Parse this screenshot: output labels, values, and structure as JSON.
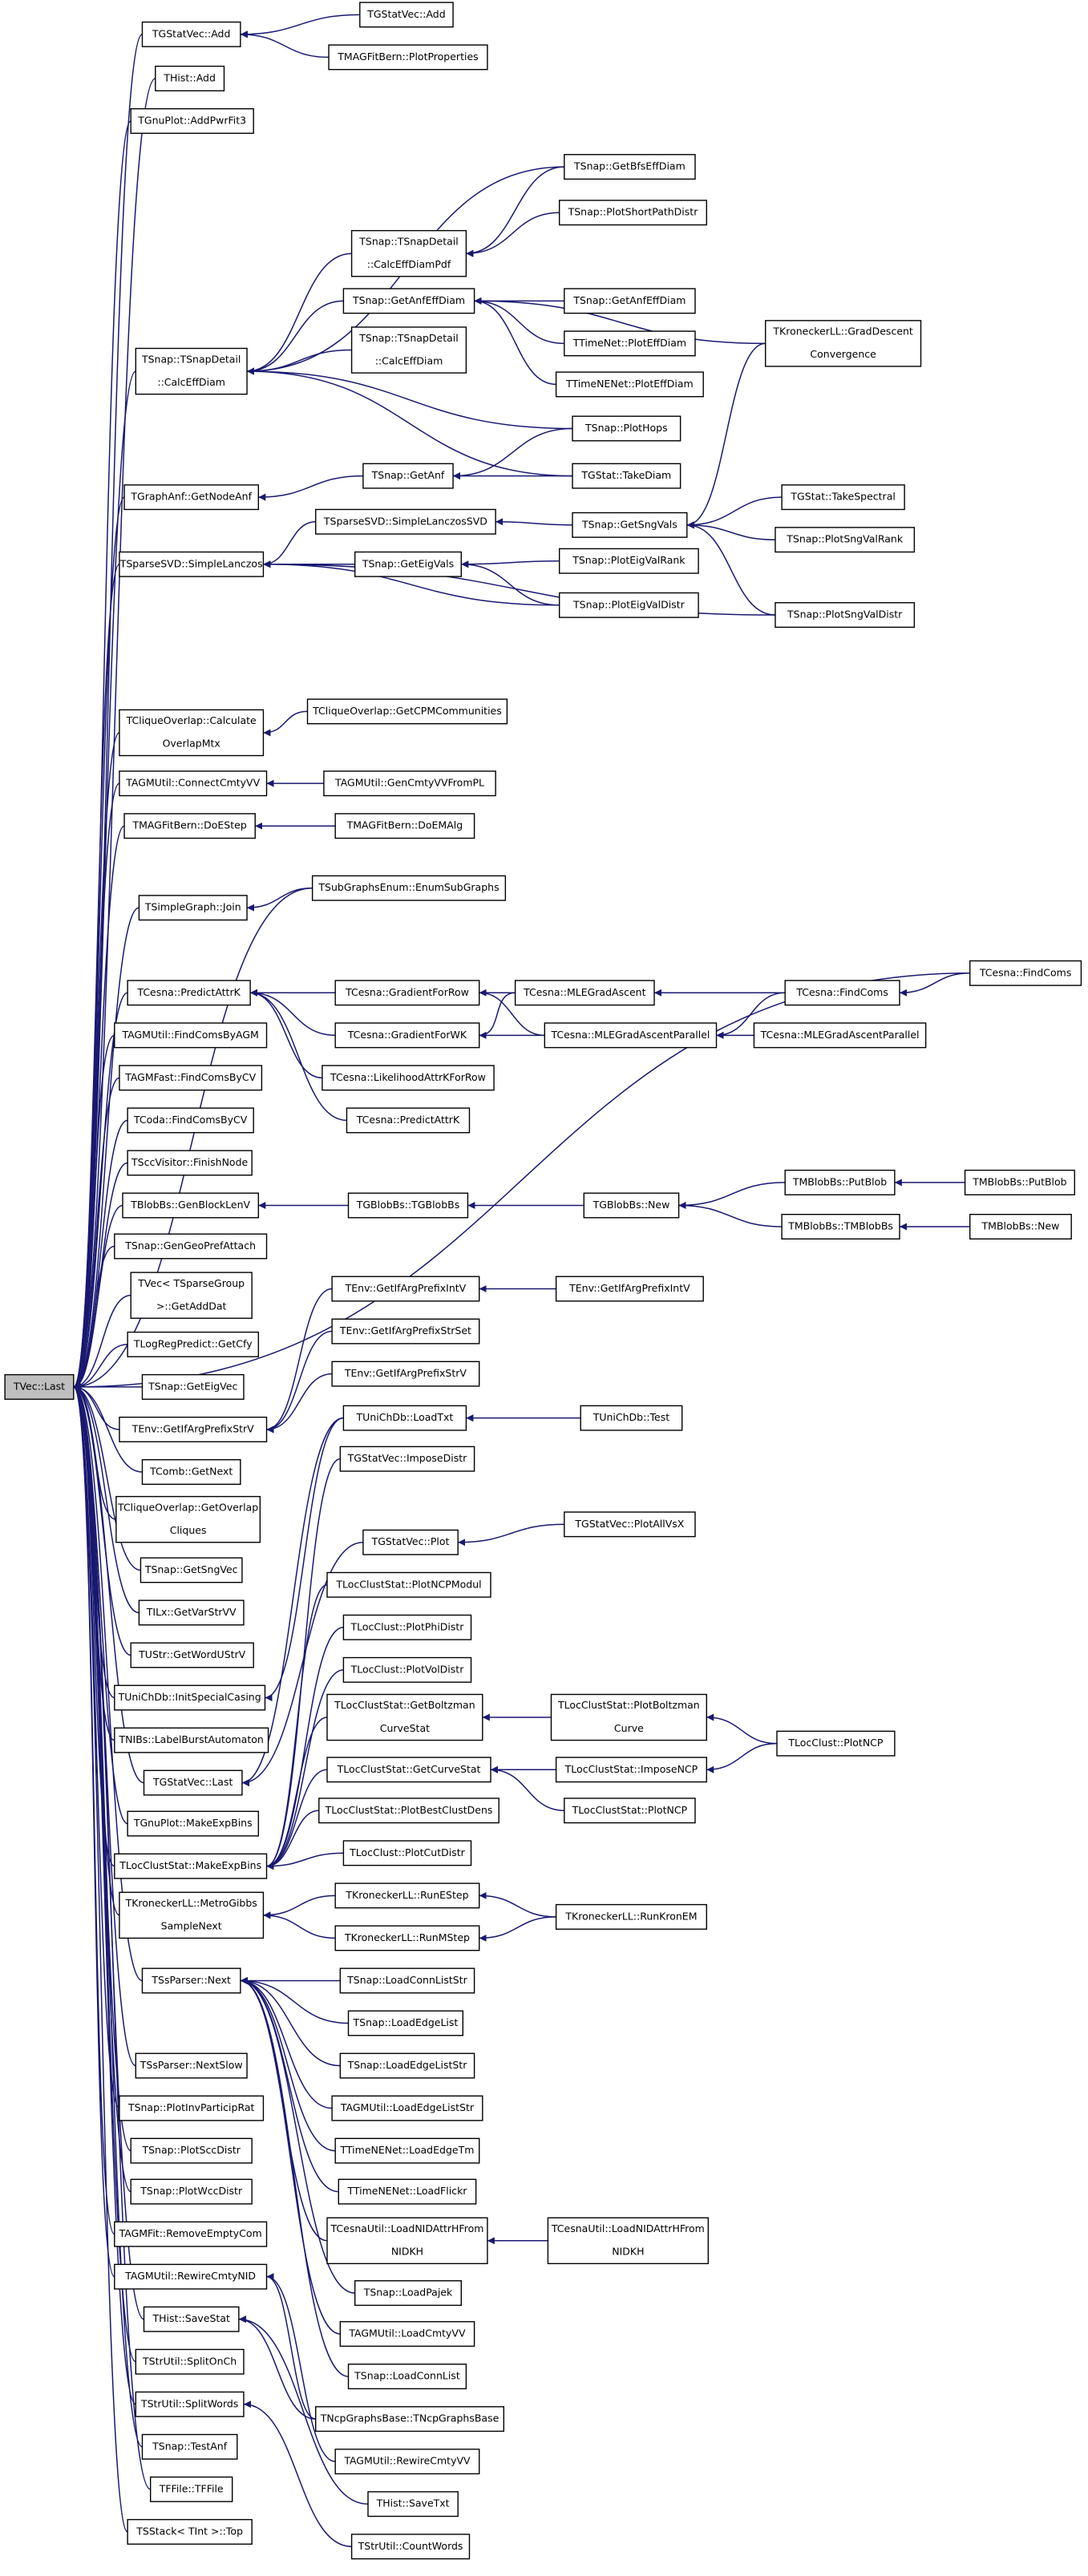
{
  "nodes": [
    {
      "label": [
        "TVec::Last"
      ]
    },
    {
      "label": [
        "TGStatVec::Add"
      ]
    },
    {
      "label": [
        "THist::Add"
      ]
    },
    {
      "label": [
        "TGnuPlot::AddPwrFit3"
      ]
    },
    {
      "label": [
        "TSnap::TSnapDetail",
        "::CalcEffDiam"
      ]
    },
    {
      "label": [
        "TGraphAnf::GetNodeAnf"
      ]
    },
    {
      "label": [
        "TSparseSVD::SimpleLanczos"
      ]
    },
    {
      "label": [
        "TCliqueOverlap::Calculate",
        "OverlapMtx"
      ]
    },
    {
      "label": [
        "TAGMUtil::ConnectCmtyVV"
      ]
    },
    {
      "label": [
        "TMAGFitBern::DoEStep"
      ]
    },
    {
      "label": [
        "TSimpleGraph::Join"
      ]
    },
    {
      "label": [
        "TCesna::PredictAttrK"
      ]
    },
    {
      "label": [
        "TAGMUtil::FindComsByAGM"
      ]
    },
    {
      "label": [
        "TAGMFast::FindComsByCV"
      ]
    },
    {
      "label": [
        "TCoda::FindComsByCV"
      ]
    },
    {
      "label": [
        "TSccVisitor::FinishNode"
      ]
    },
    {
      "label": [
        "TBlobBs::GenBlockLenV"
      ]
    },
    {
      "label": [
        "TSnap::GenGeoPrefAttach"
      ]
    },
    {
      "label": [
        "TVec< TSparseGroup",
        ">::GetAddDat"
      ]
    },
    {
      "label": [
        "TLogRegPredict::GetCfy"
      ]
    },
    {
      "label": [
        "TSnap::GetEigVec"
      ]
    },
    {
      "label": [
        "TEnv::GetIfArgPrefixStrV"
      ]
    },
    {
      "label": [
        "TComb::GetNext"
      ]
    },
    {
      "label": [
        "TCliqueOverlap::GetOverlap",
        "Cliques"
      ]
    },
    {
      "label": [
        "TSnap::GetSngVec"
      ]
    },
    {
      "label": [
        "TILx::GetVarStrVV"
      ]
    },
    {
      "label": [
        "TUStr::GetWordUStrV"
      ]
    },
    {
      "label": [
        "TUniChDb::InitSpecialCasing"
      ]
    },
    {
      "label": [
        "TNIBs::LabelBurstAutomaton"
      ]
    },
    {
      "label": [
        "TGStatVec::Last"
      ]
    },
    {
      "label": [
        "TGnuPlot::MakeExpBins"
      ]
    },
    {
      "label": [
        "TLocClustStat::MakeExpBins"
      ]
    },
    {
      "label": [
        "TKroneckerLL::MetroGibbs",
        "SampleNext"
      ]
    },
    {
      "label": [
        "TSsParser::Next"
      ]
    },
    {
      "label": [
        "TSsParser::NextSlow"
      ]
    },
    {
      "label": [
        "TSnap::PlotInvParticipRat"
      ]
    },
    {
      "label": [
        "TSnap::PlotSccDistr"
      ]
    },
    {
      "label": [
        "TSnap::PlotWccDistr"
      ]
    },
    {
      "label": [
        "TAGMFit::RemoveEmptyCom"
      ]
    },
    {
      "label": [
        "TAGMUtil::RewireCmtyNID"
      ]
    },
    {
      "label": [
        "THist::SaveStat"
      ]
    },
    {
      "label": [
        "TStrUtil::SplitOnCh"
      ]
    },
    {
      "label": [
        "TStrUtil::SplitWords"
      ]
    },
    {
      "label": [
        "TSnap::TestAnf"
      ]
    },
    {
      "label": [
        "TFFile::TFFile"
      ]
    },
    {
      "label": [
        "TSStack< TInt >::Top"
      ]
    },
    {
      "label": [
        "TGStatVec::Add"
      ]
    },
    {
      "label": [
        "TMAGFitBern::PlotProperties"
      ]
    },
    {
      "label": [
        "TSnap::GetBfsEffDiam"
      ]
    },
    {
      "label": [
        "TSnap::PlotShortPathDistr"
      ]
    },
    {
      "label": [
        "TSnap::TSnapDetail",
        "::CalcEffDiamPdf"
      ]
    },
    {
      "label": [
        "TSnap::GetAnfEffDiam"
      ]
    },
    {
      "label": [
        "TSnap::GetAnfEffDiam"
      ]
    },
    {
      "label": [
        "TSnap::TSnapDetail",
        "::CalcEffDiam"
      ]
    },
    {
      "label": [
        "TTimeNet::PlotEffDiam"
      ]
    },
    {
      "label": [
        "TTimeNENet::PlotEffDiam"
      ]
    },
    {
      "label": [
        "TKroneckerLL::GradDescent",
        "Convergence"
      ]
    },
    {
      "label": [
        "TSnap::PlotHops"
      ]
    },
    {
      "label": [
        "TSnap::GetAnf"
      ]
    },
    {
      "label": [
        "TGStat::TakeDiam"
      ]
    },
    {
      "label": [
        "TSnap::GetSngVals"
      ]
    },
    {
      "label": [
        "TGStat::TakeSpectral"
      ]
    },
    {
      "label": [
        "TSnap::PlotSngValRank"
      ]
    },
    {
      "label": [
        "TSnap::PlotSngValDistr"
      ]
    },
    {
      "label": [
        "TSparseSVD::SimpleLanczosSVD"
      ]
    },
    {
      "label": [
        "TSnap::GetEigVals"
      ]
    },
    {
      "label": [
        "TSnap::PlotEigValRank"
      ]
    },
    {
      "label": [
        "TSnap::PlotEigValDistr"
      ]
    },
    {
      "label": [
        "TCliqueOverlap::GetCPMCommunities"
      ]
    },
    {
      "label": [
        "TAGMUtil::GenCmtyVVFromPL"
      ]
    },
    {
      "label": [
        "TMAGFitBern::DoEMAlg"
      ]
    },
    {
      "label": [
        "TSubGraphsEnum::EnumSubGraphs"
      ]
    },
    {
      "label": [
        "TCesna::FindComs"
      ]
    },
    {
      "label": [
        "TCesna::GradientForRow"
      ]
    },
    {
      "label": [
        "TCesna::MLEGradAscent"
      ]
    },
    {
      "label": [
        "TCesna::FindComs"
      ]
    },
    {
      "label": [
        "TCesna::GradientForWK"
      ]
    },
    {
      "label": [
        "TCesna::MLEGradAscentParallel"
      ]
    },
    {
      "label": [
        "TCesna::MLEGradAscentParallel"
      ]
    },
    {
      "label": [
        "TCesna::LikelihoodAttrKForRow"
      ]
    },
    {
      "label": [
        "TCesna::PredictAttrK"
      ]
    },
    {
      "label": [
        "TGBlobBs::TGBlobBs"
      ]
    },
    {
      "label": [
        "TGBlobBs::New"
      ]
    },
    {
      "label": [
        "TMBlobBs::PutBlob"
      ]
    },
    {
      "label": [
        "TMBlobBs::PutBlob"
      ]
    },
    {
      "label": [
        "TMBlobBs::TMBlobBs"
      ]
    },
    {
      "label": [
        "TMBlobBs::New"
      ]
    },
    {
      "label": [
        "TEnv::GetIfArgPrefixIntV"
      ]
    },
    {
      "label": [
        "TEnv::GetIfArgPrefixIntV"
      ]
    },
    {
      "label": [
        "TEnv::GetIfArgPrefixStrSet"
      ]
    },
    {
      "label": [
        "TEnv::GetIfArgPrefixStrV"
      ]
    },
    {
      "label": [
        "TUniChDb::LoadTxt"
      ]
    },
    {
      "label": [
        "TUniChDb::Test"
      ]
    },
    {
      "label": [
        "TGStatVec::ImposeDistr"
      ]
    },
    {
      "label": [
        "TGStatVec::Plot"
      ]
    },
    {
      "label": [
        "TGStatVec::PlotAllVsX"
      ]
    },
    {
      "label": [
        "TLocClustStat::PlotNCPModul"
      ]
    },
    {
      "label": [
        "TLocClust::PlotPhiDistr"
      ]
    },
    {
      "label": [
        "TLocClust::PlotVolDistr"
      ]
    },
    {
      "label": [
        "TLocClustStat::GetBoltzman",
        "CurveStat"
      ]
    },
    {
      "label": [
        "TLocClustStat::PlotBoltzman",
        "Curve"
      ]
    },
    {
      "label": [
        "TLocClust::PlotNCP"
      ]
    },
    {
      "label": [
        "TLocClustStat::GetCurveStat"
      ]
    },
    {
      "label": [
        "TLocClustStat::ImposeNCP"
      ]
    },
    {
      "label": [
        "TLocClustStat::PlotNCP"
      ]
    },
    {
      "label": [
        "TLocClustStat::PlotBestClustDens"
      ]
    },
    {
      "label": [
        "TLocClust::PlotCutDistr"
      ]
    },
    {
      "label": [
        "TKroneckerLL::RunEStep"
      ]
    },
    {
      "label": [
        "TKroneckerLL::RunKronEM"
      ]
    },
    {
      "label": [
        "TKroneckerLL::RunMStep"
      ]
    },
    {
      "label": [
        "TSnap::LoadConnListStr"
      ]
    },
    {
      "label": [
        "TSnap::LoadEdgeList"
      ]
    },
    {
      "label": [
        "TSnap::LoadEdgeListStr"
      ]
    },
    {
      "label": [
        "TAGMUtil::LoadEdgeListStr"
      ]
    },
    {
      "label": [
        "TTimeNENet::LoadEdgeTm"
      ]
    },
    {
      "label": [
        "TTimeNENet::LoadFlickr"
      ]
    },
    {
      "label": [
        "TCesnaUtil::LoadNIDAttrHFrom",
        "NIDKH"
      ]
    },
    {
      "label": [
        "TCesnaUtil::LoadNIDAttrHFrom",
        "NIDKH"
      ]
    },
    {
      "label": [
        "TSnap::LoadPajek"
      ]
    },
    {
      "label": [
        "TAGMUtil::LoadCmtyVV"
      ]
    },
    {
      "label": [
        "TSnap::LoadConnList"
      ]
    },
    {
      "label": [
        "TNcpGraphsBase::TNcpGraphsBase"
      ]
    },
    {
      "label": [
        "TAGMUtil::RewireCmtyVV"
      ]
    },
    {
      "label": [
        "THist::SaveTxt"
      ]
    },
    {
      "label": [
        "TStrUtil::CountWords"
      ]
    }
  ]
}
